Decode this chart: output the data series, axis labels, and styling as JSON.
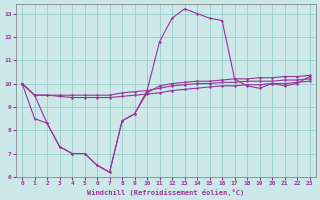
{
  "xlabel": "Windchill (Refroidissement éolien,°C)",
  "bg_color": "#cce8e8",
  "grid_color": "#99cccc",
  "line_color": "#993399",
  "xlim": [
    -0.5,
    23.5
  ],
  "ylim": [
    6,
    13.4
  ],
  "xticks": [
    0,
    1,
    2,
    3,
    4,
    5,
    6,
    7,
    8,
    9,
    10,
    11,
    12,
    13,
    14,
    15,
    16,
    17,
    18,
    19,
    20,
    21,
    22,
    23
  ],
  "yticks": [
    6,
    7,
    8,
    9,
    10,
    11,
    12,
    13
  ],
  "line1_x": [
    0,
    1,
    2,
    3,
    4,
    5,
    6,
    7,
    8,
    9,
    10,
    11,
    12,
    13,
    14,
    15,
    16,
    17,
    18,
    19,
    20,
    21,
    22,
    23
  ],
  "line1_y": [
    10.0,
    9.5,
    9.5,
    9.5,
    9.5,
    9.5,
    9.5,
    9.5,
    9.6,
    9.65,
    9.7,
    9.8,
    9.9,
    9.95,
    10.0,
    10.0,
    10.05,
    10.05,
    10.1,
    10.1,
    10.1,
    10.15,
    10.15,
    10.2
  ],
  "line2_x": [
    0,
    1,
    2,
    3,
    4,
    5,
    6,
    7,
    8,
    9,
    10,
    11,
    12,
    13,
    14,
    15,
    16,
    17,
    18,
    19,
    20,
    21,
    22,
    23
  ],
  "line2_y": [
    10.0,
    9.5,
    9.5,
    9.45,
    9.4,
    9.4,
    9.4,
    9.4,
    9.45,
    9.5,
    9.55,
    9.6,
    9.7,
    9.75,
    9.8,
    9.85,
    9.9,
    9.9,
    9.95,
    9.95,
    10.0,
    10.0,
    10.05,
    10.1
  ],
  "line3_x": [
    0,
    1,
    2,
    3,
    4,
    5,
    6,
    7,
    8,
    9,
    10,
    11,
    12,
    13,
    14,
    15,
    16,
    17,
    18,
    19,
    20,
    21,
    22,
    23
  ],
  "line3_y": [
    10.0,
    8.5,
    8.3,
    7.3,
    7.0,
    7.0,
    6.5,
    6.2,
    8.4,
    8.7,
    9.6,
    9.9,
    10.0,
    10.05,
    10.1,
    10.1,
    10.15,
    10.2,
    10.2,
    10.25,
    10.25,
    10.3,
    10.3,
    10.35
  ],
  "line4_x": [
    0,
    1,
    2,
    3,
    4,
    5,
    6,
    7,
    8,
    9,
    10,
    11,
    12,
    13,
    14,
    15,
    16,
    17,
    18,
    19,
    20,
    21,
    22,
    23
  ],
  "line4_y": [
    10.0,
    9.5,
    8.3,
    7.3,
    7.0,
    7.0,
    6.5,
    6.2,
    8.4,
    8.7,
    9.7,
    11.8,
    12.8,
    13.2,
    13.0,
    12.8,
    12.7,
    10.2,
    9.9,
    9.8,
    10.0,
    9.9,
    10.0,
    10.3
  ]
}
